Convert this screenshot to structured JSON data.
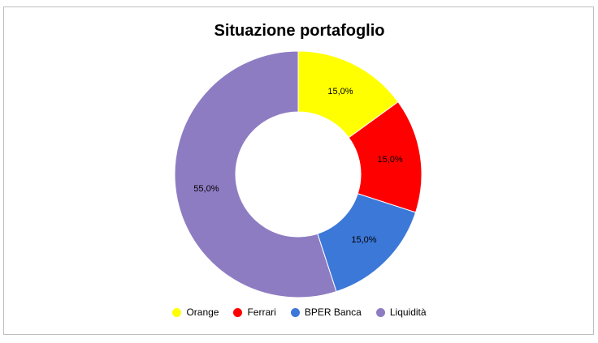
{
  "chart_data": {
    "type": "pie",
    "variant": "doughnut",
    "title": "Situazione portafoglio",
    "categories": [
      "Orange",
      "Ferrari",
      "BPER Banca",
      "Liquidità"
    ],
    "values": [
      15.0,
      15.0,
      15.0,
      55.0
    ],
    "data_labels": [
      "15,0%",
      "15,0%",
      "15,0%",
      "55,0%"
    ],
    "colors": [
      "#ffff00",
      "#ff0000",
      "#3c78d8",
      "#8e7cc3"
    ],
    "legend_position": "bottom"
  }
}
